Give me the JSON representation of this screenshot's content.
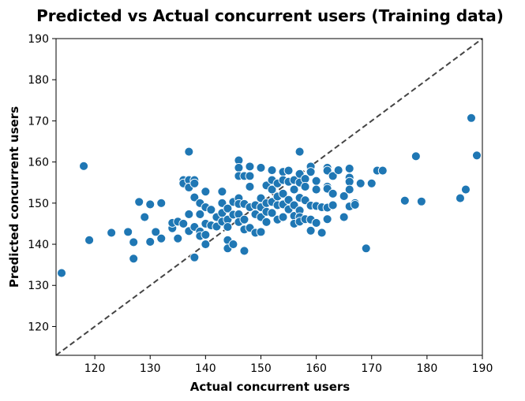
{
  "chart_data": {
    "type": "scatter",
    "title": "Predicted vs Actual concurrent users (Training data)",
    "xlabel": "Actual concurrent users",
    "ylabel": "Predicted concurrent users",
    "xlim": [
      113,
      190
    ],
    "ylim": [
      113,
      190
    ],
    "xticks": [
      120,
      130,
      140,
      150,
      160,
      170,
      180,
      190
    ],
    "yticks": [
      120,
      130,
      140,
      150,
      160,
      170,
      180,
      190
    ],
    "reference_line": {
      "style": "dashed",
      "from": [
        113,
        113
      ],
      "to": [
        190,
        190
      ]
    },
    "grid": false,
    "legend": "none",
    "colors": {
      "points": "#1f77b4",
      "point_edge": "#ffffff",
      "reference_line": "#444444"
    },
    "points": [
      [
        114,
        133
      ],
      [
        118,
        159
      ],
      [
        119,
        141
      ],
      [
        123,
        142.8
      ],
      [
        126,
        143
      ],
      [
        127,
        136.5
      ],
      [
        127,
        140.5
      ],
      [
        128,
        150.3
      ],
      [
        129,
        146.6
      ],
      [
        130,
        140.6
      ],
      [
        130,
        149.7
      ],
      [
        131,
        143
      ],
      [
        132,
        141.4
      ],
      [
        132,
        150
      ],
      [
        134,
        143.9
      ],
      [
        134,
        145.2
      ],
      [
        135,
        141.4
      ],
      [
        135,
        145.5
      ],
      [
        136,
        155.6
      ],
      [
        136,
        154.8
      ],
      [
        136,
        145
      ],
      [
        137,
        162.5
      ],
      [
        137,
        147.3
      ],
      [
        137,
        143.2
      ],
      [
        137,
        155.6
      ],
      [
        137,
        153.8
      ],
      [
        138,
        155.6
      ],
      [
        138,
        154.8
      ],
      [
        138,
        151.4
      ],
      [
        138,
        136.8
      ],
      [
        138,
        144.2
      ],
      [
        139,
        150
      ],
      [
        139,
        143.1
      ],
      [
        139,
        147.3
      ],
      [
        139,
        142
      ],
      [
        140,
        152.8
      ],
      [
        140,
        149
      ],
      [
        140,
        145
      ],
      [
        140,
        142.3
      ],
      [
        140,
        140
      ],
      [
        141,
        148.4
      ],
      [
        141,
        144.6
      ],
      [
        142,
        146.6
      ],
      [
        142,
        144.3
      ],
      [
        143,
        152.8
      ],
      [
        143,
        150
      ],
      [
        143,
        147.6
      ],
      [
        143,
        145.5
      ],
      [
        144,
        148.7
      ],
      [
        144,
        146
      ],
      [
        144,
        144.2
      ],
      [
        144,
        141
      ],
      [
        144,
        139
      ],
      [
        145,
        150.3
      ],
      [
        145,
        147.2
      ],
      [
        145,
        140
      ],
      [
        146,
        160.4
      ],
      [
        146,
        158.6
      ],
      [
        146,
        156.6
      ],
      [
        146,
        151.2
      ],
      [
        146,
        149.8
      ],
      [
        146,
        147.3
      ],
      [
        146,
        145.4
      ],
      [
        147,
        156.6
      ],
      [
        147,
        149.8
      ],
      [
        147,
        146
      ],
      [
        147,
        143.6
      ],
      [
        147,
        138.4
      ],
      [
        148,
        158.9
      ],
      [
        148,
        156.6
      ],
      [
        148,
        154
      ],
      [
        148,
        149
      ],
      [
        148,
        144
      ],
      [
        149,
        149.5
      ],
      [
        149,
        147.3
      ],
      [
        149,
        142.8
      ],
      [
        150,
        158.6
      ],
      [
        150,
        151.2
      ],
      [
        150,
        149
      ],
      [
        150,
        146.6
      ],
      [
        150,
        143
      ],
      [
        151,
        154.3
      ],
      [
        151,
        150
      ],
      [
        151,
        147.9
      ],
      [
        151,
        145.4
      ],
      [
        152,
        158
      ],
      [
        152,
        155.6
      ],
      [
        152,
        153.3
      ],
      [
        152,
        150.3
      ],
      [
        152,
        147.6
      ],
      [
        153,
        154.8
      ],
      [
        153,
        151.6
      ],
      [
        153,
        149.5
      ],
      [
        153,
        146
      ],
      [
        154,
        157.6
      ],
      [
        154,
        155.6
      ],
      [
        154,
        152.3
      ],
      [
        154,
        149.7
      ],
      [
        154,
        146.6
      ],
      [
        155,
        157.9
      ],
      [
        155,
        155.2
      ],
      [
        155,
        150.8
      ],
      [
        155,
        148.5
      ],
      [
        156,
        155.6
      ],
      [
        156,
        153.3
      ],
      [
        156,
        149.5
      ],
      [
        156,
        146.9
      ],
      [
        156,
        145
      ],
      [
        157,
        162.5
      ],
      [
        157,
        157.1
      ],
      [
        157,
        155
      ],
      [
        157,
        151.3
      ],
      [
        157,
        148.2
      ],
      [
        157,
        146.6
      ],
      [
        157,
        145.5
      ],
      [
        158,
        155.9
      ],
      [
        158,
        154
      ],
      [
        158,
        150.7
      ],
      [
        158,
        146.1
      ],
      [
        159,
        158.9
      ],
      [
        159,
        157.6
      ],
      [
        159,
        149.4
      ],
      [
        159,
        146
      ],
      [
        159,
        143.3
      ],
      [
        160,
        155.4
      ],
      [
        160,
        153.3
      ],
      [
        160,
        149.3
      ],
      [
        160,
        145.2
      ],
      [
        161,
        149
      ],
      [
        161,
        142.8
      ],
      [
        162,
        158.6
      ],
      [
        162,
        157.9
      ],
      [
        162,
        154
      ],
      [
        162,
        153.5
      ],
      [
        162,
        148.9
      ],
      [
        162,
        146.1
      ],
      [
        163,
        156.6
      ],
      [
        163,
        152.3
      ],
      [
        163,
        149.5
      ],
      [
        164,
        158
      ],
      [
        165,
        151.7
      ],
      [
        165,
        146.6
      ],
      [
        166,
        158.4
      ],
      [
        166,
        156.2
      ],
      [
        166,
        155.2
      ],
      [
        166,
        153.3
      ],
      [
        166,
        149.2
      ],
      [
        167,
        150
      ],
      [
        167,
        149.6
      ],
      [
        168,
        154.8
      ],
      [
        169,
        139
      ],
      [
        170,
        154.8
      ],
      [
        171,
        157.9
      ],
      [
        172,
        157.9
      ],
      [
        176,
        150.6
      ],
      [
        178,
        161.4
      ],
      [
        179,
        150.4
      ],
      [
        186,
        151.2
      ],
      [
        187,
        153.3
      ],
      [
        188,
        170.7
      ],
      [
        189,
        161.6
      ]
    ]
  }
}
